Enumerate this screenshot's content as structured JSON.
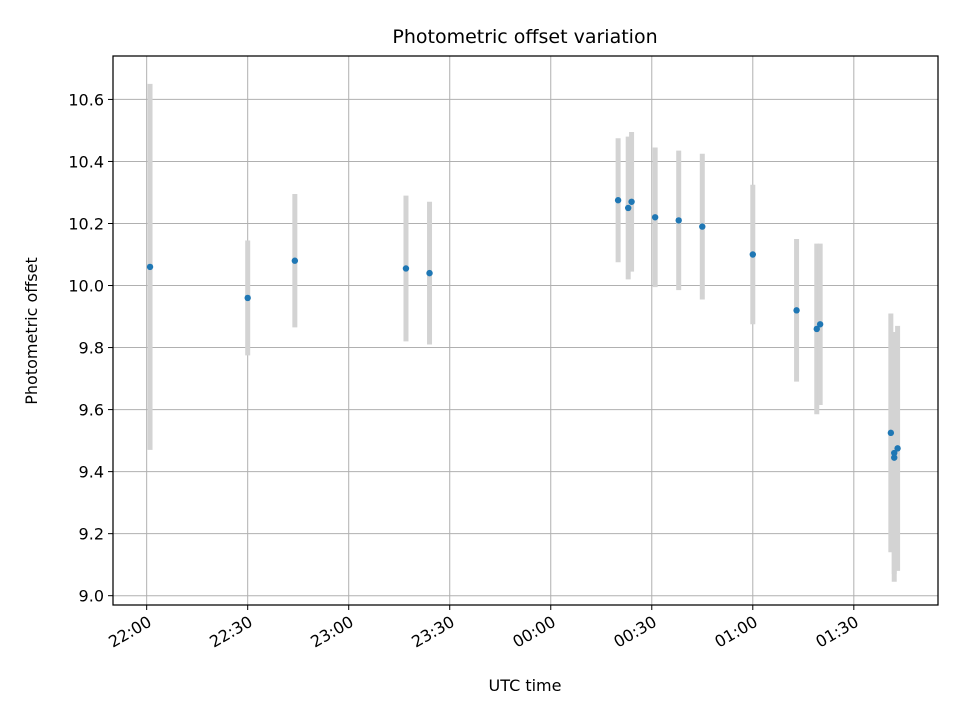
{
  "chart_data": {
    "type": "scatter",
    "title": "Photometric offset variation",
    "xlabel": "UTC time",
    "ylabel": "Photometric offset",
    "grid": true,
    "x_ticks": [
      "22:00",
      "22:30",
      "23:00",
      "23:30",
      "00:00",
      "00:30",
      "01:00",
      "01:30"
    ],
    "y_ticks": [
      "9.0",
      "9.2",
      "9.4",
      "9.6",
      "9.8",
      "10.0",
      "10.2",
      "10.4",
      "10.6"
    ],
    "xlim": [
      "21:50",
      "01:55"
    ],
    "ylim": [
      8.97,
      10.74
    ],
    "colors": {
      "marker": "#1f77b4",
      "errorbar": "#d3d3d3",
      "grid": "#b0b0b0"
    },
    "series": [
      {
        "points": [
          {
            "x": "22:01",
            "y": 10.06,
            "err": 0.59
          },
          {
            "x": "22:30",
            "y": 9.96,
            "err": 0.185
          },
          {
            "x": "22:44",
            "y": 10.08,
            "err": 0.215
          },
          {
            "x": "23:17",
            "y": 10.055,
            "err": 0.235
          },
          {
            "x": "23:24",
            "y": 10.04,
            "err": 0.23
          },
          {
            "x": "00:20",
            "y": 10.275,
            "err": 0.2
          },
          {
            "x": "00:23",
            "y": 10.25,
            "err": 0.23
          },
          {
            "x": "00:24",
            "y": 10.27,
            "err": 0.225
          },
          {
            "x": "00:31",
            "y": 10.22,
            "err": 0.225
          },
          {
            "x": "00:38",
            "y": 10.21,
            "err": 0.225
          },
          {
            "x": "00:45",
            "y": 10.19,
            "err": 0.235
          },
          {
            "x": "01:00",
            "y": 10.1,
            "err": 0.225
          },
          {
            "x": "01:13",
            "y": 9.92,
            "err": 0.23
          },
          {
            "x": "01:19",
            "y": 9.86,
            "err": 0.275
          },
          {
            "x": "01:20",
            "y": 9.875,
            "err": 0.26
          },
          {
            "x": "01:41",
            "y": 9.525,
            "err": 0.385
          },
          {
            "x": "01:42",
            "y": 9.445,
            "err": 0.4
          },
          {
            "x": "01:42",
            "y": 9.46,
            "err": 0.39
          },
          {
            "x": "01:43",
            "y": 9.475,
            "err": 0.395
          }
        ]
      }
    ]
  }
}
